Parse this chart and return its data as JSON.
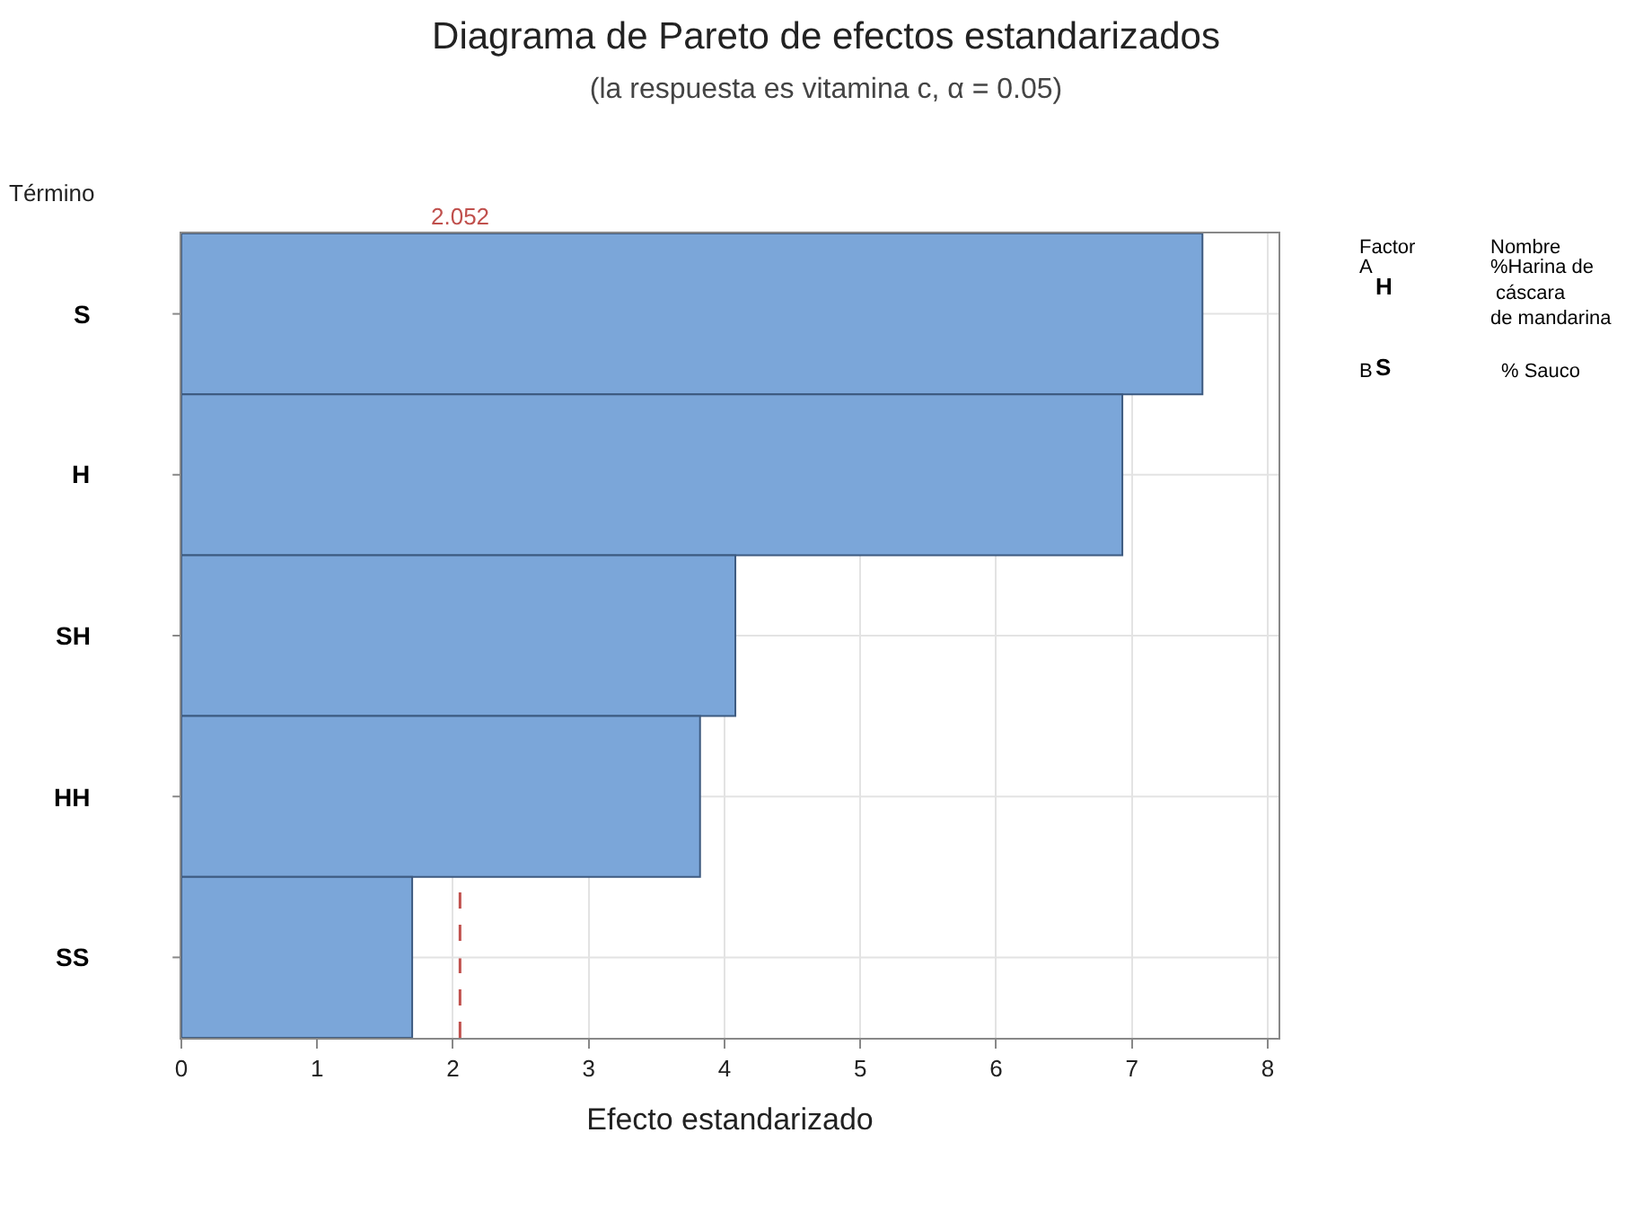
{
  "chart_data": {
    "type": "bar",
    "orientation": "horizontal",
    "title": "Diagrama de Pareto de efectos estandarizados",
    "subtitle": "(la respuesta es vitamina c, α = 0.05)",
    "xlabel": "Efecto estandarizado",
    "ylabel": "Término",
    "categories": [
      "S",
      "H",
      "SH",
      "HH",
      "SS"
    ],
    "values": [
      7.52,
      6.93,
      4.08,
      3.82,
      1.7
    ],
    "color": "#7ba6d9",
    "xlim": [
      0,
      8.08
    ],
    "xticks": [
      0,
      1,
      2,
      3,
      4,
      5,
      6,
      7,
      8
    ],
    "grid": true,
    "ref_lines": [
      {
        "axis": "x",
        "value": 2.052,
        "label": "2.052",
        "color": "#c0504d",
        "line_style": "dashed"
      }
    ],
    "annotations": [
      "Factor",
      "Nombre",
      "A",
      "H",
      "%Harina de\n cáscara\nde mandarina",
      "B",
      "S",
      "% Sauco"
    ]
  }
}
